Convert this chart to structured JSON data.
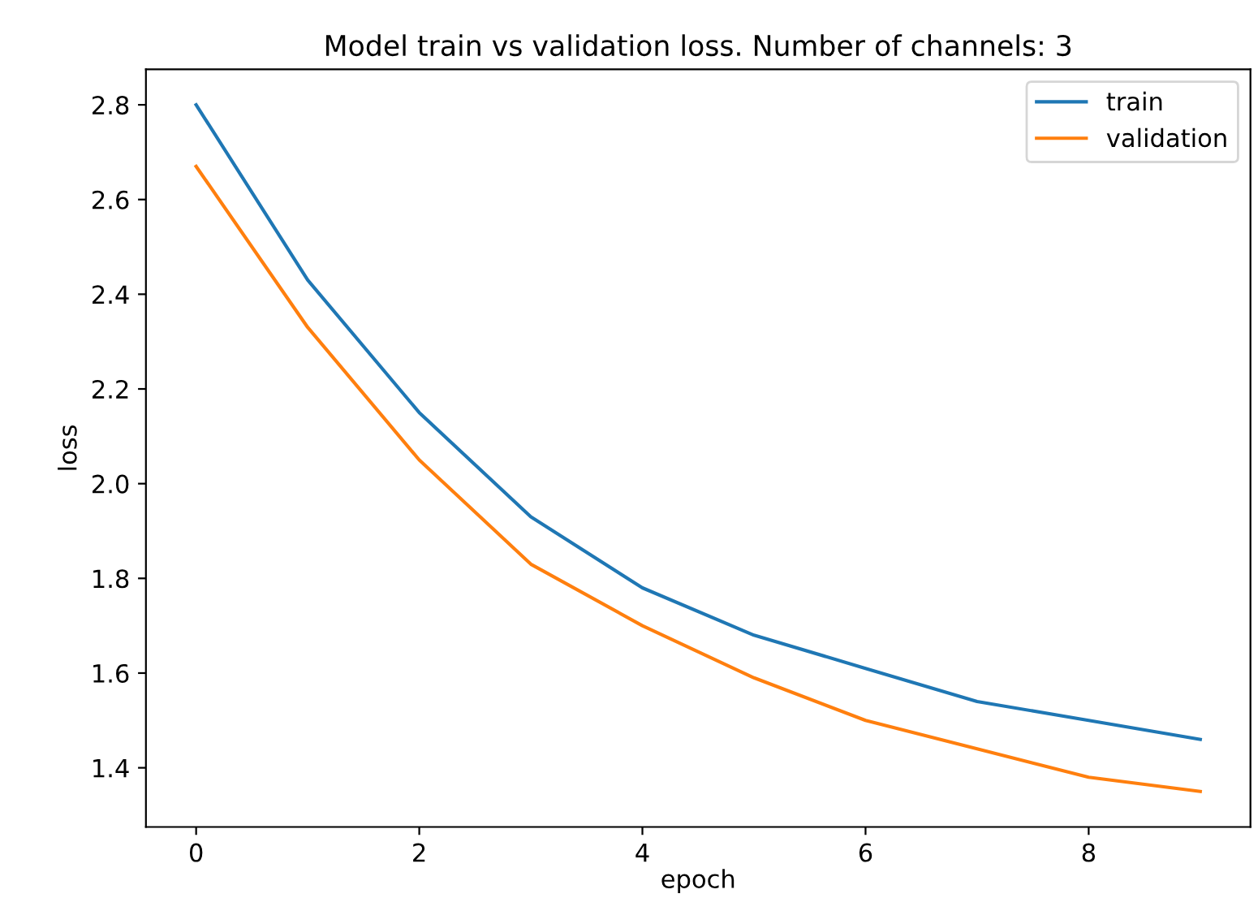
{
  "chart_data": {
    "type": "line",
    "title": "Model train vs validation loss. Number of channels: 3",
    "xlabel": "epoch",
    "ylabel": "loss",
    "x": [
      0,
      1,
      2,
      3,
      4,
      5,
      6,
      7,
      8,
      9
    ],
    "series": [
      {
        "name": "train",
        "color": "#1f77b4",
        "values": [
          2.8,
          2.43,
          2.15,
          1.93,
          1.78,
          1.68,
          1.61,
          1.54,
          1.5,
          1.46
        ]
      },
      {
        "name": "validation",
        "color": "#ff7f0e",
        "values": [
          2.67,
          2.33,
          2.05,
          1.83,
          1.7,
          1.59,
          1.5,
          1.44,
          1.38,
          1.35
        ]
      }
    ],
    "xlim": [
      -0.45,
      9.45
    ],
    "xticks": [
      0,
      2,
      4,
      6,
      8
    ],
    "ylim": [
      1.275,
      2.875
    ],
    "yticks": [
      {
        "value": 1.4,
        "label": "1.4"
      },
      {
        "value": 1.6,
        "label": "1.6"
      },
      {
        "value": 1.8,
        "label": "1.8"
      },
      {
        "value": 2.0,
        "label": "2.0"
      },
      {
        "value": 2.2,
        "label": "2.2"
      },
      {
        "value": 2.4,
        "label": "2.4"
      },
      {
        "value": 2.6,
        "label": "2.6"
      },
      {
        "value": 2.8,
        "label": "2.8"
      }
    ],
    "legend": "top right",
    "grid": false
  }
}
